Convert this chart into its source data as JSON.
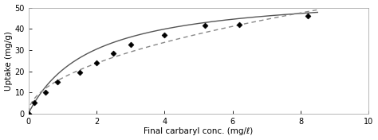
{
  "data_points_x": [
    0.0,
    0.18,
    0.5,
    0.85,
    1.5,
    2.0,
    2.5,
    3.0,
    4.0,
    5.2,
    6.2,
    8.2
  ],
  "data_points_y": [
    0.0,
    5.0,
    10.0,
    15.0,
    19.5,
    24.0,
    28.5,
    32.5,
    37.0,
    41.5,
    41.8,
    46.0
  ],
  "xlim": [
    0,
    10
  ],
  "ylim": [
    0,
    50
  ],
  "xticks": [
    0,
    2,
    4,
    6,
    8,
    10
  ],
  "yticks": [
    0,
    10,
    20,
    30,
    40,
    50
  ],
  "xlabel": "Final carbaryl conc. (mg/ℓ)",
  "ylabel": "Uptake (mg/g)",
  "marker_color": "black",
  "marker": "D",
  "marker_size": 3.5,
  "line_color_solid": "#555555",
  "line_color_dashed": "#888888",
  "bg_color": "#ffffff",
  "langmuir_qmax": 58.0,
  "langmuir_KL": 0.55,
  "freundlich_KF": 16.8,
  "freundlich_n": 0.5
}
